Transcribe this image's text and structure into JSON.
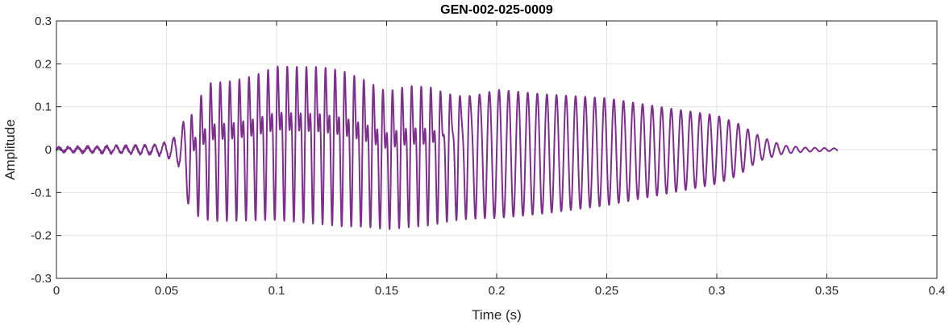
{
  "chart_data": {
    "type": "line",
    "title": "GEN-002-025-0009",
    "xlabel": "Time (s)",
    "ylabel": "Amplitude",
    "xlim": [
      0,
      0.4
    ],
    "ylim": [
      -0.3,
      0.3
    ],
    "xticks": [
      0,
      0.05,
      0.1,
      0.15,
      0.2,
      0.25,
      0.3,
      0.35,
      0.4
    ],
    "xtick_labels": [
      "0",
      "0.05",
      "0.1",
      "0.15",
      "0.2",
      "0.25",
      "0.3",
      "0.35",
      "0.4"
    ],
    "yticks": [
      -0.3,
      -0.2,
      -0.1,
      0,
      0.1,
      0.2,
      0.3
    ],
    "ytick_labels": [
      "-0.3",
      "-0.2",
      "-0.1",
      "0",
      "0.1",
      "0.2",
      "0.3"
    ],
    "grid": true,
    "line_color": "#7E2F8E",
    "signal_end": 0.355,
    "envelope": {
      "t": [
        0,
        0.02,
        0.045,
        0.052,
        0.056,
        0.06,
        0.064,
        0.07,
        0.08,
        0.09,
        0.1,
        0.11,
        0.12,
        0.13,
        0.14,
        0.15,
        0.16,
        0.17,
        0.18,
        0.2,
        0.22,
        0.25,
        0.28,
        0.3,
        0.31,
        0.315,
        0.32,
        0.33,
        0.34,
        0.355
      ],
      "upper": [
        0.005,
        0.007,
        0.01,
        0.02,
        0.04,
        0.095,
        0.16,
        0.21,
        0.215,
        0.23,
        0.255,
        0.255,
        0.255,
        0.245,
        0.22,
        0.19,
        0.205,
        0.2,
        0.175,
        0.14,
        0.13,
        0.12,
        0.095,
        0.08,
        0.06,
        0.045,
        0.03,
        0.01,
        0.005,
        0.003
      ],
      "lower": [
        -0.005,
        -0.007,
        -0.01,
        -0.02,
        -0.04,
        -0.13,
        -0.17,
        -0.185,
        -0.185,
        -0.185,
        -0.185,
        -0.19,
        -0.195,
        -0.2,
        -0.2,
        -0.205,
        -0.2,
        -0.195,
        -0.18,
        -0.16,
        -0.15,
        -0.13,
        -0.1,
        -0.08,
        -0.06,
        -0.04,
        -0.025,
        -0.01,
        -0.005,
        -0.003
      ]
    },
    "fundamental_hz": 230
  }
}
